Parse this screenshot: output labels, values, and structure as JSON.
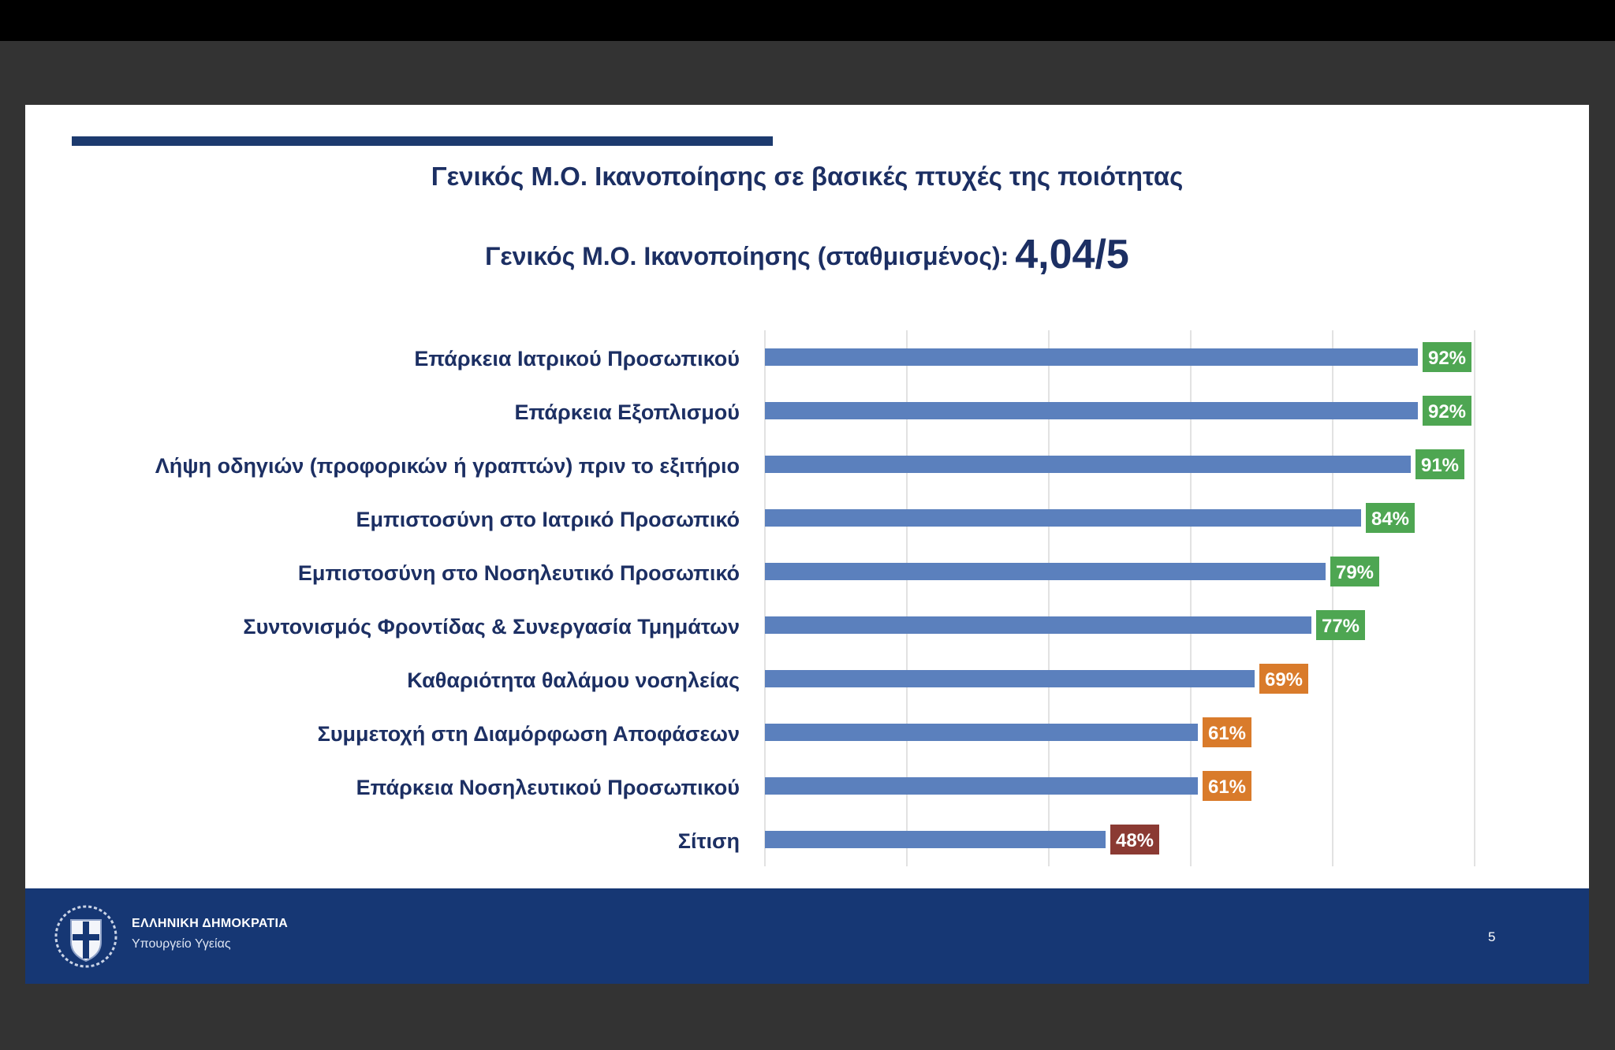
{
  "slide": {
    "title": "Γενικός Μ.Ο. Ικανοποίησης σε βασικές πτυχές της ποιότητας",
    "subtitle_label": "Γενικός Μ.Ο. Ικανοποίησης (σταθμισμένος):",
    "subtitle_value": "4,04/5"
  },
  "chart_data": {
    "type": "bar",
    "orientation": "horizontal",
    "categories": [
      "Επάρκεια Ιατρικού Προσωπικού",
      "Επάρκεια Εξοπλισμού",
      "Λήψη οδηγιών (προφορικών ή γραπτών) πριν το εξιτήριο",
      "Εμπιστοσύνη στο Ιατρικό Προσωπικό",
      "Εμπιστοσύνη στο Νοσηλευτικό Προσωπικό",
      "Συντονισμός Φροντίδας & Συνεργασία Τμημάτων",
      "Καθαριότητα θαλάμου νοσηλείας",
      "Συμμετοχή στη Διαμόρφωση Αποφάσεων",
      "Επάρκεια Νοσηλευτικού Προσωπικού",
      "Σίτιση"
    ],
    "values": [
      92,
      92,
      91,
      84,
      79,
      77,
      69,
      61,
      61,
      48
    ],
    "data_labels": [
      "92%",
      "92%",
      "91%",
      "84%",
      "79%",
      "77%",
      "69%",
      "61%",
      "61%",
      "48%"
    ],
    "label_colors": [
      "#4ea652",
      "#4ea652",
      "#4ea652",
      "#4ea652",
      "#4ea652",
      "#4ea652",
      "#d97b2b",
      "#d97b2b",
      "#d97b2b",
      "#8b3a33"
    ],
    "bar_color": "#5b80bd",
    "xlim": [
      0,
      100
    ],
    "grid": true,
    "grid_step": 20
  },
  "footer": {
    "emblem_icon": "greek-republic-emblem-icon",
    "org_name": "ΕΛΛΗΝΙΚΗ ΔΗΜΟΚΡΑΤΙΑ",
    "ministry": "Υπουργείο Υγείας",
    "page_number": "5",
    "background": "#163774"
  }
}
